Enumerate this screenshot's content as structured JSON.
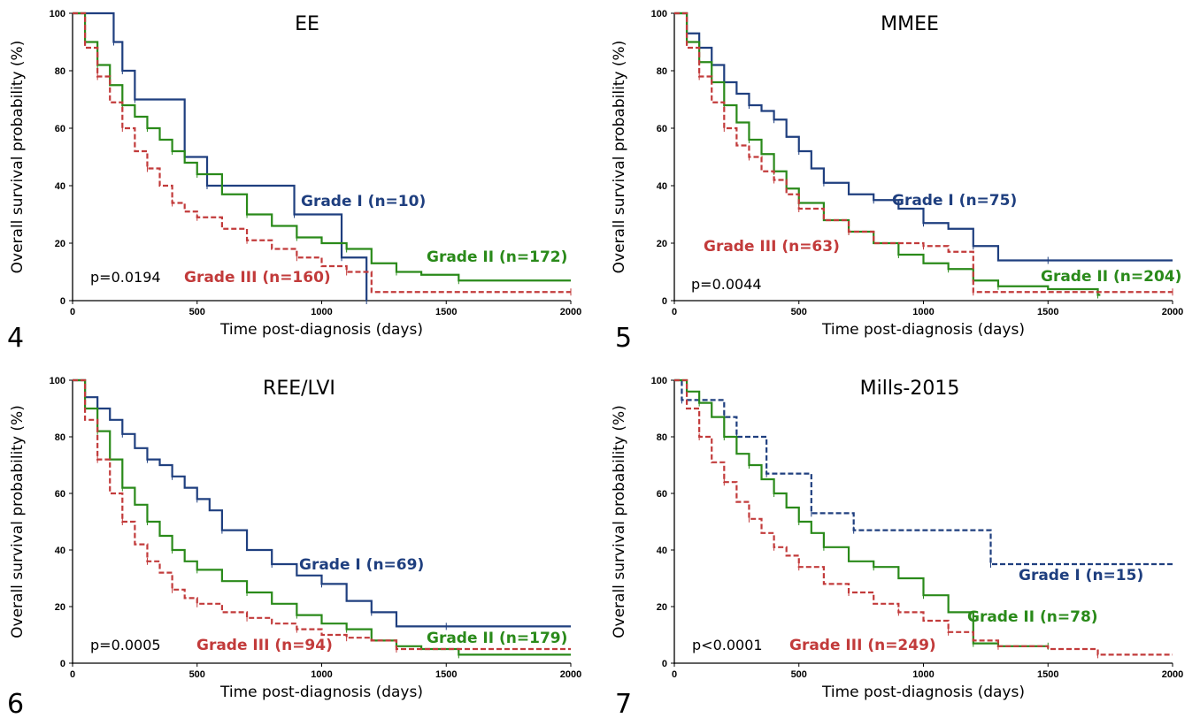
{
  "colors": {
    "grade1": "#1f3f7f",
    "grade2": "#2a8a1a",
    "grade3": "#c23b3b"
  },
  "chart_data": [
    {
      "type": "line",
      "panel_label": "4",
      "title": "EE",
      "xlabel": "Time post-diagnosis (days)",
      "ylabel": "Overall survival probability (%)",
      "xlim": [
        0,
        2000
      ],
      "ylim": [
        0,
        100
      ],
      "xticks": [
        0,
        500,
        1000,
        1500,
        2000
      ],
      "yticks": [
        0,
        20,
        40,
        60,
        80,
        100
      ],
      "p_value": "p=0.0194",
      "series": [
        {
          "name": "Grade I (n=10)",
          "color_key": "grade1",
          "dashed": false,
          "x": [
            0,
            165,
            165,
            200,
            200,
            250,
            250,
            450,
            450,
            540,
            540,
            890,
            890,
            1080,
            1080,
            1180,
            1180
          ],
          "y": [
            100,
            100,
            90,
            90,
            80,
            80,
            70,
            70,
            50,
            50,
            40,
            40,
            30,
            30,
            15,
            15,
            0
          ]
        },
        {
          "name": "Grade II (n=172)",
          "color_key": "grade2",
          "dashed": false,
          "x": [
            0,
            50,
            100,
            150,
            200,
            250,
            300,
            350,
            400,
            450,
            500,
            600,
            700,
            800,
            900,
            1000,
            1100,
            1200,
            1300,
            1400,
            1550,
            2000
          ],
          "y": [
            100,
            90,
            82,
            75,
            68,
            64,
            60,
            56,
            52,
            48,
            44,
            37,
            30,
            26,
            22,
            20,
            18,
            13,
            10,
            9,
            7,
            7
          ]
        },
        {
          "name": "Grade III (n=160)",
          "color_key": "grade3",
          "dashed": true,
          "x": [
            0,
            50,
            100,
            150,
            200,
            250,
            300,
            350,
            400,
            450,
            500,
            600,
            700,
            800,
            900,
            1000,
            1100,
            1200,
            2000
          ],
          "y": [
            100,
            88,
            78,
            69,
            60,
            52,
            46,
            40,
            34,
            31,
            29,
            25,
            21,
            18,
            15,
            12,
            10,
            3,
            3
          ]
        }
      ],
      "labels": [
        {
          "text": "Grade I (n=10)",
          "color_key": "grade1"
        },
        {
          "text": "Grade II (n=172)",
          "color_key": "grade2"
        },
        {
          "text": "Grade III (n=160)",
          "color_key": "grade3"
        }
      ]
    },
    {
      "type": "line",
      "panel_label": "5",
      "title": "MMEE",
      "xlabel": "Time post-diagnosis (days)",
      "ylabel": "Overall survival probability (%)",
      "xlim": [
        0,
        2000
      ],
      "ylim": [
        0,
        100
      ],
      "xticks": [
        0,
        500,
        1000,
        1500,
        2000
      ],
      "yticks": [
        0,
        20,
        40,
        60,
        80,
        100
      ],
      "p_value": "p=0.0044",
      "series": [
        {
          "name": "Grade I (n=75)",
          "color_key": "grade1",
          "dashed": false,
          "x": [
            0,
            50,
            100,
            150,
            200,
            250,
            300,
            350,
            400,
            450,
            500,
            550,
            600,
            700,
            800,
            900,
            1000,
            1100,
            1200,
            1300,
            1500,
            2000
          ],
          "y": [
            100,
            93,
            88,
            82,
            76,
            72,
            68,
            66,
            63,
            57,
            52,
            46,
            41,
            37,
            35,
            32,
            27,
            25,
            19,
            14,
            14,
            14
          ]
        },
        {
          "name": "Grade II (n=204)",
          "color_key": "grade2",
          "dashed": false,
          "x": [
            0,
            50,
            100,
            150,
            200,
            250,
            300,
            350,
            400,
            450,
            500,
            600,
            700,
            800,
            900,
            1000,
            1100,
            1200,
            1300,
            1500,
            1700,
            1710
          ],
          "y": [
            100,
            90,
            83,
            76,
            68,
            62,
            56,
            51,
            45,
            39,
            34,
            28,
            24,
            20,
            16,
            13,
            11,
            7,
            5,
            4,
            2,
            2
          ]
        },
        {
          "name": "Grade III (n=63)",
          "color_key": "grade3",
          "dashed": true,
          "x": [
            0,
            50,
            100,
            150,
            200,
            250,
            300,
            350,
            400,
            450,
            500,
            600,
            700,
            800,
            1000,
            1100,
            1200,
            1500,
            2000
          ],
          "y": [
            100,
            88,
            78,
            69,
            60,
            54,
            50,
            45,
            42,
            37,
            32,
            28,
            24,
            20,
            19,
            17,
            3,
            3,
            3
          ]
        }
      ],
      "labels": [
        {
          "text": "Grade I (n=75)",
          "color_key": "grade1"
        },
        {
          "text": "Grade II (n=204)",
          "color_key": "grade2"
        },
        {
          "text": "Grade III (n=63)",
          "color_key": "grade3"
        }
      ]
    },
    {
      "type": "line",
      "panel_label": "6",
      "title": "REE/LVI",
      "xlabel": "Time post-diagnosis (days)",
      "ylabel": "Overall survival probability (%)",
      "xlim": [
        0,
        2000
      ],
      "ylim": [
        0,
        100
      ],
      "xticks": [
        0,
        500,
        1000,
        1500,
        2000
      ],
      "yticks": [
        0,
        20,
        40,
        60,
        80,
        100
      ],
      "p_value": "p=0.0005",
      "series": [
        {
          "name": "Grade I (n=69)",
          "color_key": "grade1",
          "dashed": false,
          "x": [
            0,
            50,
            100,
            150,
            200,
            250,
            300,
            350,
            400,
            450,
            500,
            550,
            600,
            700,
            800,
            900,
            1000,
            1100,
            1200,
            1300,
            1500,
            2000
          ],
          "y": [
            100,
            94,
            90,
            86,
            81,
            76,
            72,
            70,
            66,
            62,
            58,
            54,
            47,
            40,
            35,
            31,
            28,
            22,
            18,
            13,
            13,
            13
          ]
        },
        {
          "name": "Grade II (n=179)",
          "color_key": "grade2",
          "dashed": false,
          "x": [
            0,
            50,
            100,
            150,
            200,
            250,
            300,
            350,
            400,
            450,
            500,
            600,
            700,
            800,
            900,
            1000,
            1100,
            1200,
            1300,
            1400,
            1550,
            2000
          ],
          "y": [
            100,
            90,
            82,
            72,
            62,
            56,
            50,
            45,
            40,
            36,
            33,
            29,
            25,
            21,
            17,
            14,
            12,
            8,
            6,
            5,
            3,
            3
          ]
        },
        {
          "name": "Grade III (n=94)",
          "color_key": "grade3",
          "dashed": true,
          "x": [
            0,
            50,
            100,
            150,
            200,
            250,
            300,
            350,
            400,
            450,
            500,
            600,
            700,
            800,
            900,
            1000,
            1100,
            1200,
            1300,
            2000
          ],
          "y": [
            100,
            86,
            72,
            60,
            50,
            42,
            36,
            32,
            26,
            23,
            21,
            18,
            16,
            14,
            12,
            10,
            9,
            8,
            5,
            5
          ]
        }
      ],
      "labels": [
        {
          "text": "Grade I (n=69)",
          "color_key": "grade1"
        },
        {
          "text": "Grade II (n=179)",
          "color_key": "grade2"
        },
        {
          "text": "Grade III (n=94)",
          "color_key": "grade3"
        }
      ]
    },
    {
      "type": "line",
      "panel_label": "7",
      "title": "Mills-2015",
      "xlabel": "Time post-diagnosis (days)",
      "ylabel": "Overall survival probability (%)",
      "xlim": [
        0,
        2000
      ],
      "ylim": [
        0,
        100
      ],
      "xticks": [
        0,
        500,
        1000,
        1500,
        2000
      ],
      "yticks": [
        0,
        20,
        40,
        60,
        80,
        100
      ],
      "p_value": "p<0.0001",
      "series": [
        {
          "name": "Grade I (n=15)",
          "color_key": "grade1",
          "dashed": true,
          "x": [
            0,
            30,
            30,
            200,
            200,
            250,
            250,
            370,
            370,
            550,
            550,
            720,
            720,
            1270,
            1270,
            2000
          ],
          "y": [
            100,
            100,
            93,
            93,
            87,
            87,
            80,
            80,
            67,
            67,
            53,
            53,
            47,
            47,
            35,
            35
          ]
        },
        {
          "name": "Grade II (n=78)",
          "color_key": "grade2",
          "dashed": false,
          "x": [
            0,
            50,
            100,
            150,
            200,
            250,
            300,
            350,
            400,
            450,
            500,
            550,
            600,
            700,
            800,
            900,
            1000,
            1100,
            1200,
            1300,
            1500
          ],
          "y": [
            100,
            96,
            92,
            87,
            80,
            74,
            70,
            65,
            60,
            55,
            50,
            46,
            41,
            36,
            34,
            30,
            24,
            18,
            7,
            6,
            6
          ]
        },
        {
          "name": "Grade III (n=249)",
          "color_key": "grade3",
          "dashed": true,
          "x": [
            0,
            50,
            100,
            150,
            200,
            250,
            300,
            350,
            400,
            450,
            500,
            600,
            700,
            800,
            900,
            1000,
            1100,
            1200,
            1300,
            1500,
            1700,
            2000
          ],
          "y": [
            100,
            90,
            80,
            71,
            64,
            57,
            51,
            46,
            41,
            38,
            34,
            28,
            25,
            21,
            18,
            15,
            11,
            8,
            6,
            5,
            3,
            3
          ]
        }
      ],
      "labels": [
        {
          "text": "Grade I (n=15)",
          "color_key": "grade1"
        },
        {
          "text": "Grade II (n=78)",
          "color_key": "grade2"
        },
        {
          "text": "Grade III (n=249)",
          "color_key": "grade3"
        }
      ]
    }
  ]
}
